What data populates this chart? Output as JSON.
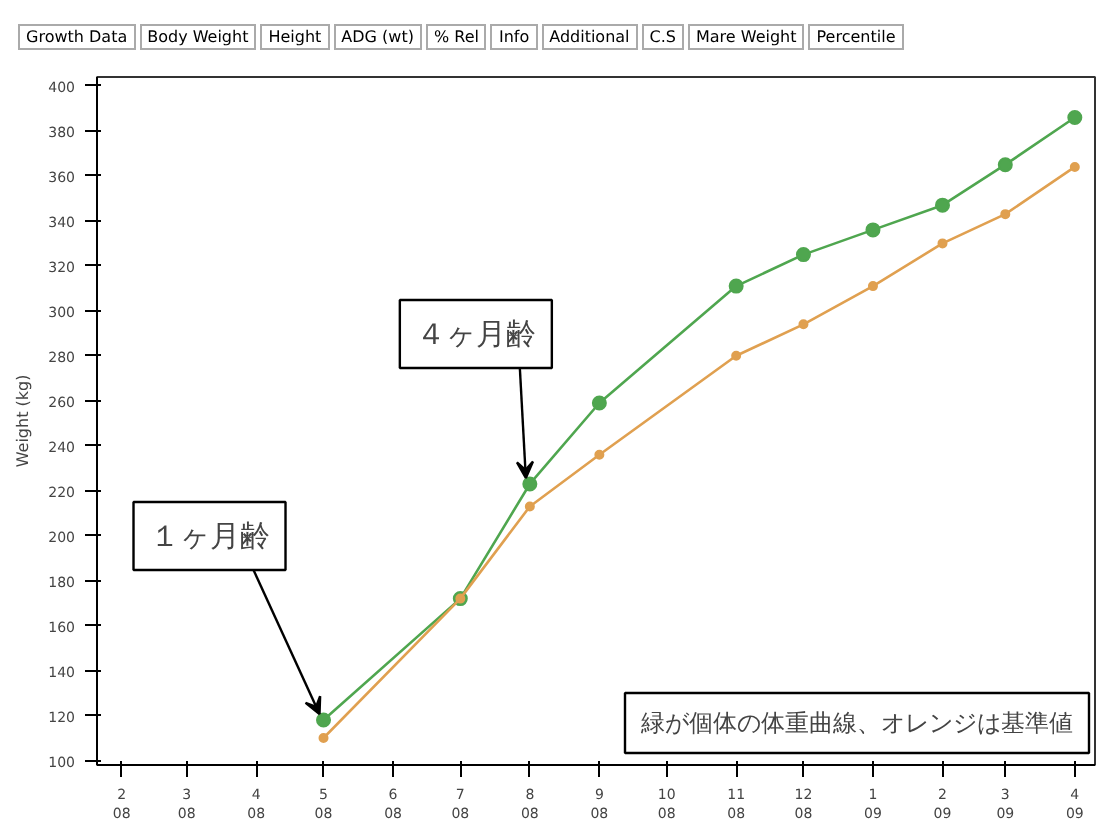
{
  "chart_data": {
    "type": "line",
    "annotations": [
      "Growth Data",
      "Body Weight",
      "Height",
      "ADG (wt)",
      "% Rel",
      "Info",
      "Additional",
      "C.S",
      "Mare Weight",
      "Percentile",
      {
        "text": "１ヶ月齢",
        "x": "2008-05",
        "y": 118
      },
      {
        "text": "４ヶ月齢",
        "x": "2008-08",
        "y": 223
      },
      "緑が個体の体重曲線、オレンジは基準値"
    ],
    "ylabel": "Weight (kg)",
    "x": [
      "2008-05",
      "2008-07",
      "2008-08",
      "2008-09",
      "2008-11",
      "2008-12",
      "2009-01",
      "2009-02",
      "2009-03",
      "2009-04"
    ],
    "series": [
      {
        "color": "#4fa64f",
        "values": [
          118,
          172,
          223,
          259,
          311,
          325,
          336,
          347,
          365,
          386
        ]
      },
      {
        "color": "#e0a050",
        "values": [
          110,
          172,
          213,
          236,
          280,
          294,
          311,
          330,
          343,
          364
        ]
      }
    ],
    "marker": "circle",
    "line_style": "solid",
    "grid": false,
    "xlim": [
      "2008-01-21",
      "2009-04-10"
    ],
    "xticks": [
      {
        "value": "2008-02",
        "label": "2\n08"
      },
      {
        "value": "2008-03",
        "label": "3\n08"
      },
      {
        "value": "2008-04",
        "label": "4\n08"
      },
      {
        "value": "2008-05",
        "label": "5\n08"
      },
      {
        "value": "2008-06",
        "label": "6\n08"
      },
      {
        "value": "2008-07",
        "label": "7\n08"
      },
      {
        "value": "2008-08",
        "label": "8\n08"
      },
      {
        "value": "2008-09",
        "label": "9\n08"
      },
      {
        "value": "2008-10",
        "label": "10\n08"
      },
      {
        "value": "2008-11",
        "label": "11\n08"
      },
      {
        "value": "2008-12",
        "label": "12\n08"
      },
      {
        "value": "2009-01",
        "label": "1\n09"
      },
      {
        "value": "2009-02",
        "label": "2\n09"
      },
      {
        "value": "2009-03",
        "label": "3\n09"
      },
      {
        "value": "2009-04",
        "label": "4\n09"
      }
    ],
    "ylim": [
      98,
      404
    ],
    "yticks": [
      100,
      120,
      140,
      160,
      180,
      200,
      220,
      240,
      260,
      280,
      300,
      320,
      340,
      360,
      380,
      400
    ]
  }
}
